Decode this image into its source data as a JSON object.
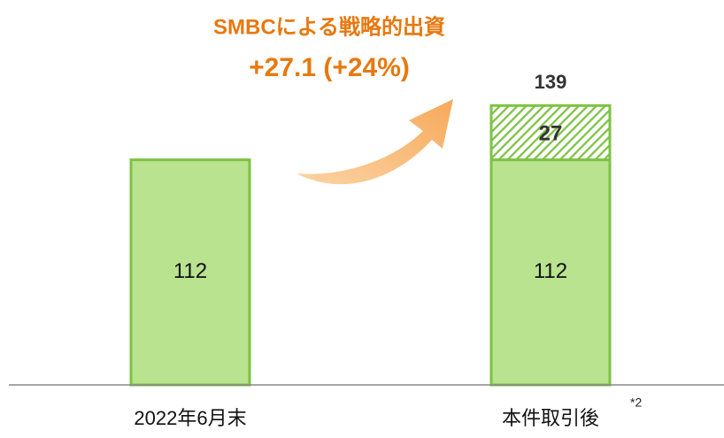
{
  "chart_data": {
    "type": "stacked_bar",
    "annotation_title": "SMBCによる戦略的出資",
    "annotation_value": "+27.1 (+24%)",
    "categories": [
      "2022年6月末",
      "本件取引後"
    ],
    "footnote_marker": "*2",
    "series": [
      {
        "color": "#b9e38f",
        "values": [
          112,
          112
        ]
      },
      {
        "color": "#7dc242",
        "pattern": "hatch",
        "values": [
          null,
          27
        ]
      }
    ],
    "totals": [
      null,
      139
    ],
    "ylim": [
      0,
      140
    ]
  }
}
